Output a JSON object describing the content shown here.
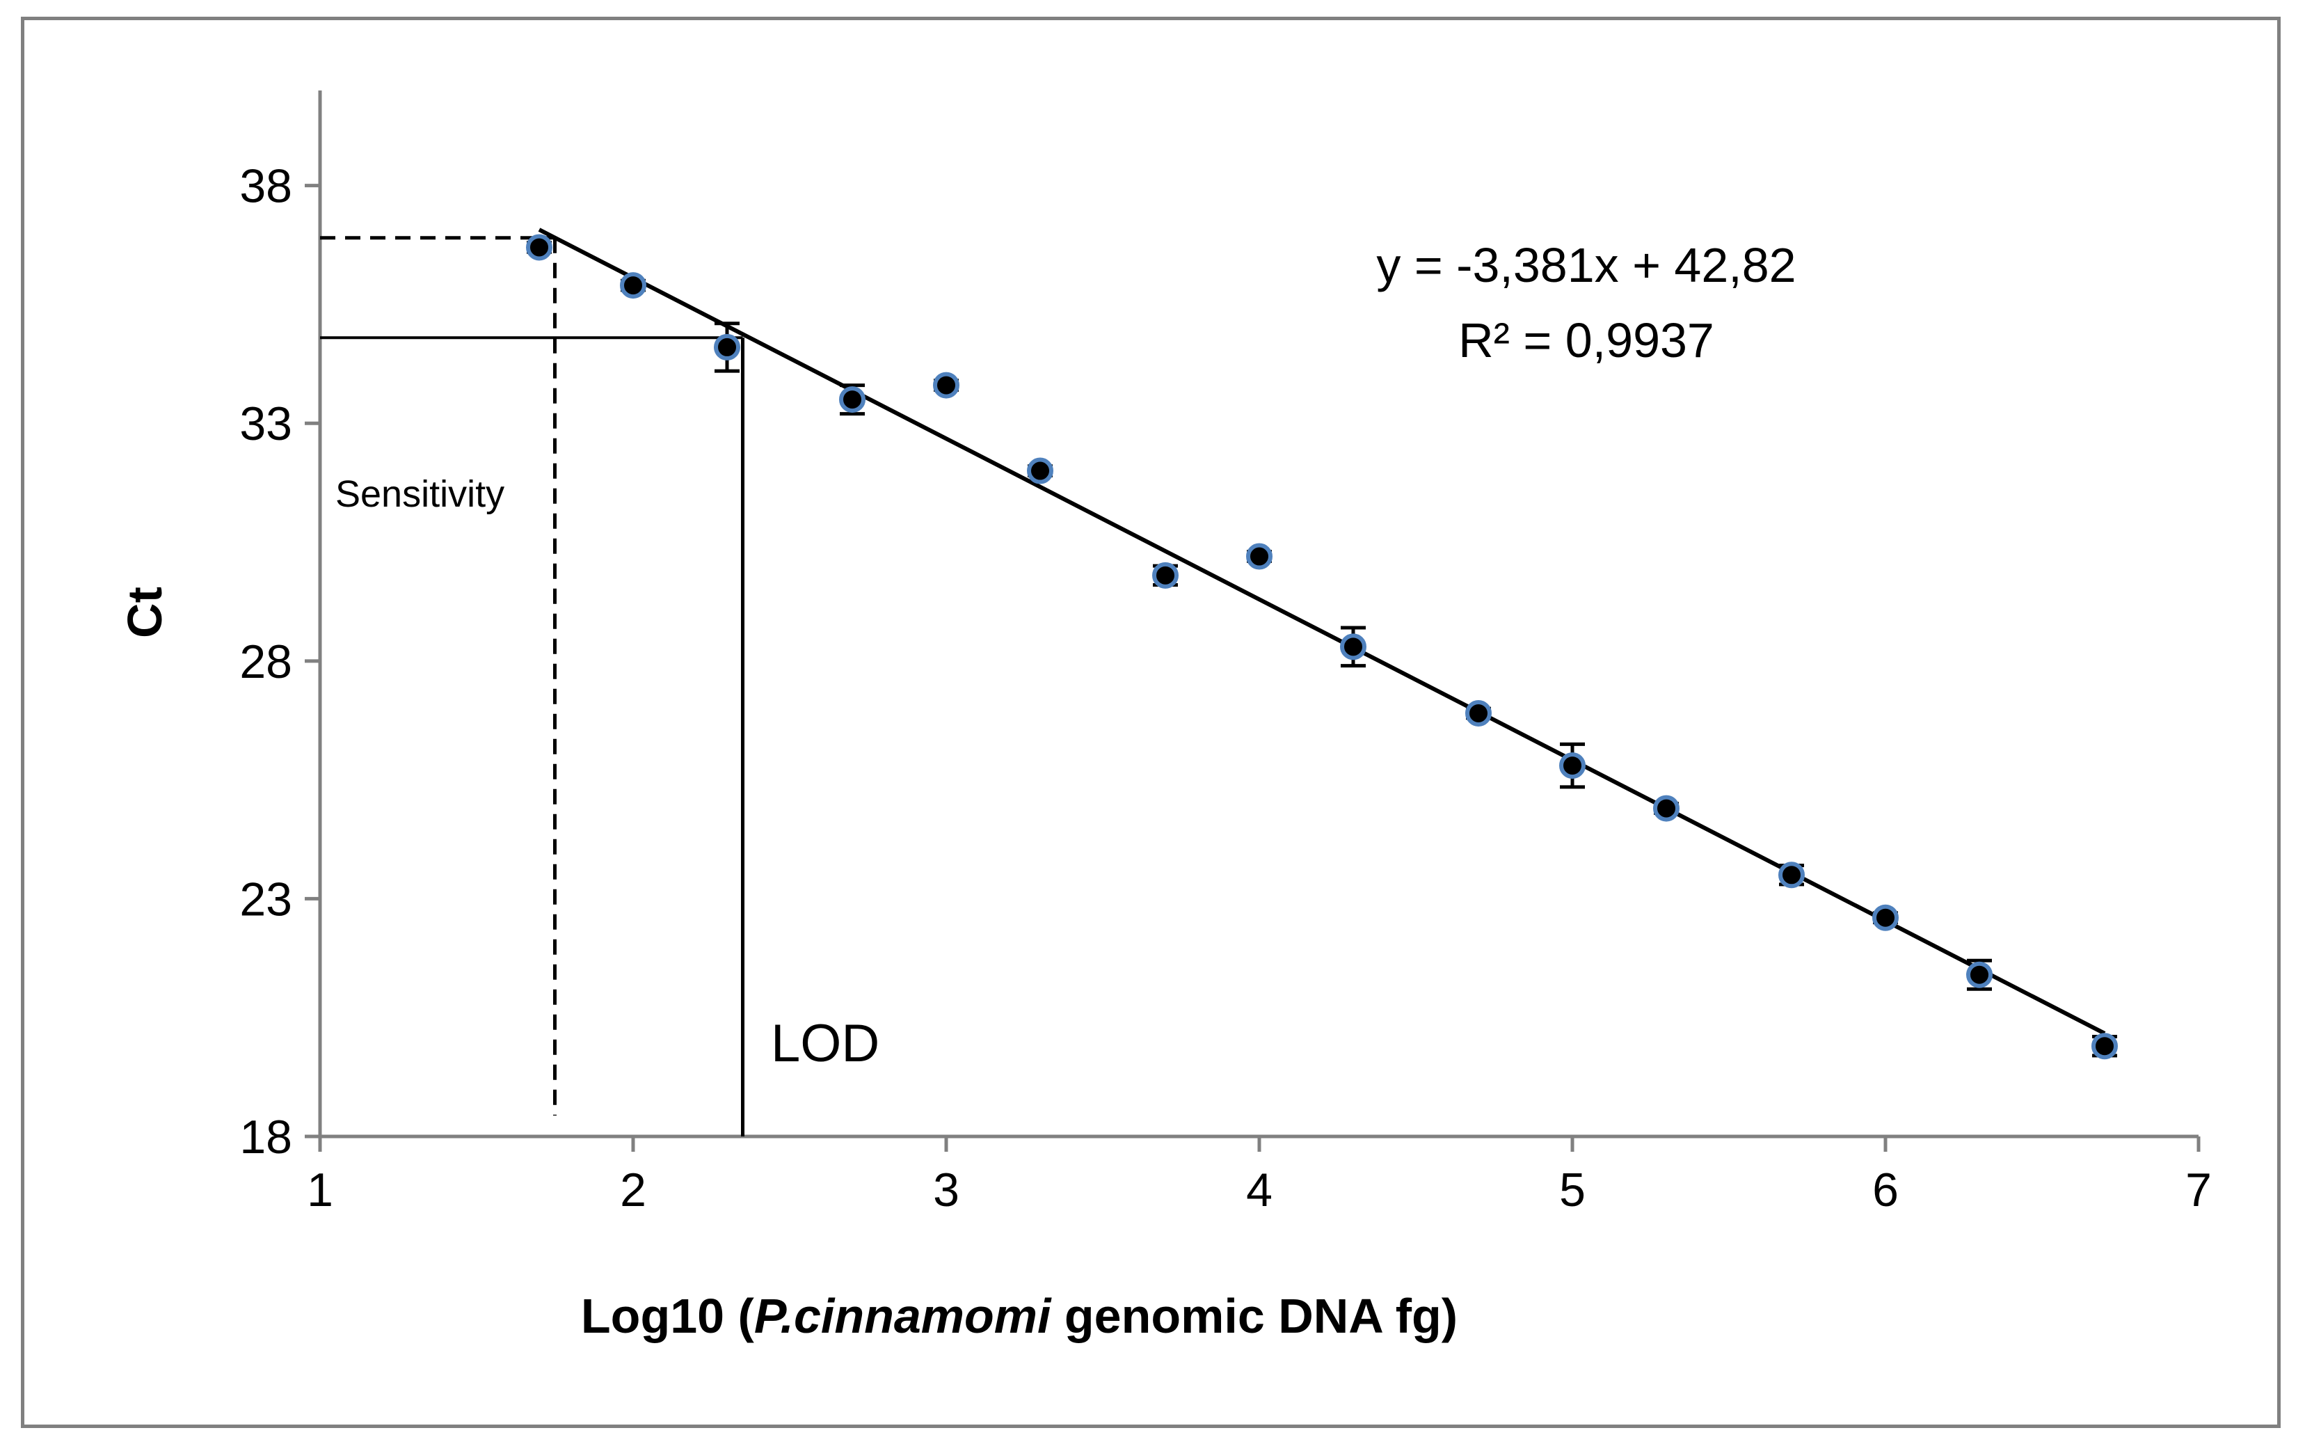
{
  "chart_data": {
    "type": "scatter",
    "xlabel_prefix": "Log10 (",
    "xlabel_italic": "P.cinnamomi",
    "xlabel_suffix": " genomic DNA fg)",
    "ylabel": "Ct",
    "xlim": [
      1,
      7
    ],
    "ylim": [
      18,
      40
    ],
    "x_ticks": [
      "1",
      "2",
      "3",
      "4",
      "5",
      "6",
      "7"
    ],
    "y_ticks": [
      "18",
      "23",
      "28",
      "33",
      "38"
    ],
    "grid": false,
    "series": [
      {
        "color": "#000000",
        "outline_color": "#4f81bd",
        "points": [
          {
            "x": 1.7,
            "y": 36.7,
            "err": 0.1
          },
          {
            "x": 2.0,
            "y": 35.9,
            "err": 0.1
          },
          {
            "x": 2.3,
            "y": 34.6,
            "err": 0.5
          },
          {
            "x": 2.7,
            "y": 33.5,
            "err": 0.3
          },
          {
            "x": 3.0,
            "y": 33.8,
            "err": 0.1
          },
          {
            "x": 3.3,
            "y": 32.0,
            "err": 0.1
          },
          {
            "x": 3.7,
            "y": 29.8,
            "err": 0.2
          },
          {
            "x": 4.0,
            "y": 30.2,
            "err": 0.1
          },
          {
            "x": 4.3,
            "y": 28.3,
            "err": 0.4
          },
          {
            "x": 4.7,
            "y": 26.9,
            "err": 0.1
          },
          {
            "x": 5.0,
            "y": 25.8,
            "err": 0.45
          },
          {
            "x": 5.3,
            "y": 24.9,
            "err": 0.1
          },
          {
            "x": 5.7,
            "y": 23.5,
            "err": 0.2
          },
          {
            "x": 6.0,
            "y": 22.6,
            "err": 0.1
          },
          {
            "x": 6.3,
            "y": 21.4,
            "err": 0.3
          },
          {
            "x": 6.7,
            "y": 19.9,
            "err": 0.2
          }
        ]
      }
    ],
    "trendline": {
      "slope": -3.381,
      "intercept": 42.82,
      "x_start": 1.7,
      "x_end": 6.7
    },
    "equation_text": "y = -3,381x + 42,82",
    "r2_text": "R² = 0,9937",
    "sensitivity": {
      "x": 1.75,
      "y": 36.9,
      "label": "Sensitivity"
    },
    "lod": {
      "x": 2.35,
      "y": 34.8,
      "label": "LOD"
    }
  }
}
